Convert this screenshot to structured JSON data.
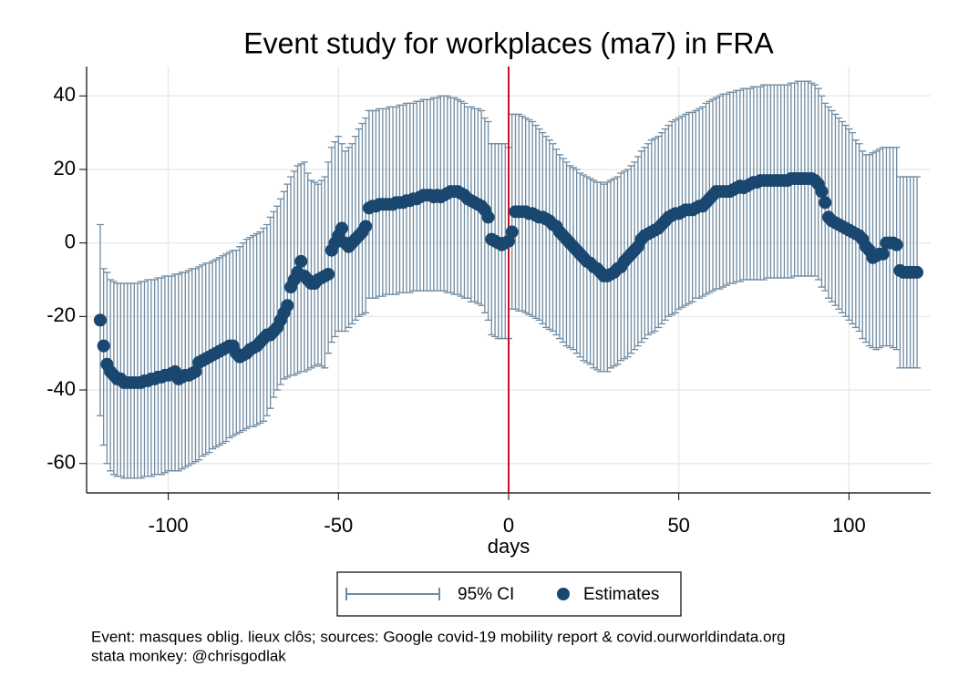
{
  "chart_data": {
    "type": "errorbar-scatter",
    "title": "Event study for workplaces (ma7) in FRA",
    "x_label": "days",
    "notes": [
      "Event: masques oblig. lieux clôs; sources: Google covid-19 mobility report & covid.ourworldindata.org",
      "stata monkey: @chrisgodlak"
    ],
    "xlim": [
      -124,
      124
    ],
    "ylim": [
      -68,
      48
    ],
    "xticks": [
      -100,
      -50,
      0,
      50,
      100
    ],
    "yticks": [
      -60,
      -40,
      -20,
      0,
      20,
      40
    ],
    "grid": true,
    "xline": {
      "value": 0,
      "color": "#c8102e"
    },
    "x": [
      -120,
      -119,
      -118,
      -117,
      -116,
      -115,
      -114,
      -113,
      -112,
      -111,
      -110,
      -109,
      -108,
      -107,
      -106,
      -105,
      -104,
      -103,
      -102,
      -101,
      -100,
      -99,
      -98,
      -97,
      -96,
      -95,
      -94,
      -93,
      -92,
      -91,
      -90,
      -89,
      -88,
      -87,
      -86,
      -85,
      -84,
      -83,
      -82,
      -81,
      -80,
      -79,
      -78,
      -77,
      -76,
      -75,
      -74,
      -73,
      -72,
      -71,
      -70,
      -69,
      -68,
      -67,
      -66,
      -65,
      -64,
      -63,
      -62,
      -61,
      -60,
      -59,
      -58,
      -57,
      -56,
      -55,
      -54,
      -53,
      -52,
      -51,
      -50,
      -49,
      -48,
      -47,
      -46,
      -45,
      -44,
      -43,
      -42,
      -41,
      -40,
      -39,
      -38,
      -37,
      -36,
      -35,
      -34,
      -33,
      -32,
      -31,
      -30,
      -29,
      -28,
      -27,
      -26,
      -25,
      -24,
      -23,
      -22,
      -21,
      -20,
      -19,
      -18,
      -17,
      -16,
      -15,
      -14,
      -13,
      -12,
      -11,
      -10,
      -9,
      -8,
      -7,
      -6,
      -5,
      -4,
      -3,
      -2,
      -1,
      0,
      1,
      2,
      3,
      4,
      5,
      6,
      7,
      8,
      9,
      10,
      11,
      12,
      13,
      14,
      15,
      16,
      17,
      18,
      19,
      20,
      21,
      22,
      23,
      24,
      25,
      26,
      27,
      28,
      29,
      30,
      31,
      32,
      33,
      34,
      35,
      36,
      37,
      38,
      39,
      40,
      41,
      42,
      43,
      44,
      45,
      46,
      47,
      48,
      49,
      50,
      51,
      52,
      53,
      54,
      55,
      56,
      57,
      58,
      59,
      60,
      61,
      62,
      63,
      64,
      65,
      66,
      67,
      68,
      69,
      70,
      71,
      72,
      73,
      74,
      75,
      76,
      77,
      78,
      79,
      80,
      81,
      82,
      83,
      84,
      85,
      86,
      87,
      88,
      89,
      90,
      91,
      92,
      93,
      94,
      95,
      96,
      97,
      98,
      99,
      100,
      101,
      102,
      103,
      104,
      105,
      106,
      107,
      108,
      109,
      110,
      111,
      112,
      113,
      114,
      115,
      116,
      117,
      118,
      119,
      120
    ],
    "series": [
      {
        "name": "95% CI",
        "color": "#6f8ba2",
        "upper": [
          5,
          -7,
          -8,
          -10,
          -10.5,
          -11,
          -11,
          -11,
          -11,
          -11,
          -11,
          -11,
          -10.5,
          -10.5,
          -10,
          -10,
          -10,
          -9.5,
          -9.5,
          -9,
          -9,
          -9,
          -8.5,
          -8.5,
          -8,
          -8,
          -7.5,
          -7,
          -7,
          -6.5,
          -6,
          -5.5,
          -5.5,
          -5,
          -4.5,
          -4,
          -3.5,
          -3,
          -2.5,
          -2,
          -2,
          -1,
          0,
          1,
          1.5,
          2,
          2.5,
          3,
          4,
          5,
          7,
          8.5,
          10,
          12,
          14,
          16,
          18,
          19.5,
          21,
          21.5,
          22,
          19,
          17,
          16.5,
          16,
          17,
          18,
          22,
          26,
          27.5,
          29,
          27,
          25,
          26,
          27,
          29,
          31,
          32.5,
          34,
          36,
          36,
          36,
          36.5,
          36.5,
          36.5,
          37,
          37,
          37,
          37.5,
          37.5,
          38,
          38,
          38,
          38.5,
          38.5,
          39,
          39,
          39,
          39.5,
          39.5,
          40,
          40,
          40,
          39.5,
          39.5,
          39,
          38.5,
          38,
          37,
          37,
          36.5,
          36.5,
          36,
          34,
          33,
          27,
          27,
          27,
          27,
          27,
          26,
          35,
          35,
          35,
          34.5,
          34,
          33.5,
          33,
          32,
          31,
          30,
          29,
          28,
          27,
          25.5,
          24,
          23,
          22,
          21,
          20.5,
          20,
          19,
          18.5,
          18,
          17.5,
          17,
          16.5,
          16.5,
          16,
          16.5,
          17,
          17.5,
          18,
          19,
          19.5,
          20,
          21,
          22,
          23.5,
          25,
          26,
          27,
          28,
          28.5,
          29,
          30,
          31,
          32,
          33,
          33.5,
          34,
          34.5,
          35,
          35.5,
          35.5,
          36,
          36.5,
          37,
          38,
          38.5,
          39,
          39.5,
          40,
          40.5,
          40.5,
          41,
          41,
          41.5,
          41.5,
          42,
          42,
          42,
          42.5,
          42.5,
          42.5,
          43,
          43,
          43,
          43,
          43,
          43,
          43,
          43,
          43.5,
          43.5,
          44,
          44,
          44,
          44,
          43.5,
          43,
          42,
          40,
          38,
          37,
          36,
          35,
          34,
          33,
          32,
          31,
          30,
          28,
          27,
          25,
          24,
          24,
          24.5,
          25,
          25.5,
          26,
          26,
          26,
          26,
          26,
          18,
          18,
          18,
          18,
          18,
          18
        ],
        "lower": [
          -47,
          -55,
          -60,
          -62,
          -63,
          -63.5,
          -63.5,
          -64,
          -64,
          -64,
          -64,
          -64,
          -64,
          -63.5,
          -63.5,
          -63.5,
          -63,
          -63,
          -63,
          -62.5,
          -62,
          -62,
          -62,
          -62,
          -61.5,
          -61,
          -60.5,
          -60,
          -59.5,
          -59,
          -58,
          -57.5,
          -57,
          -56,
          -55.5,
          -55,
          -54.5,
          -54,
          -53,
          -52.5,
          -52,
          -51.5,
          -51,
          -50.5,
          -50,
          -50,
          -49.5,
          -49,
          -48.5,
          -47,
          -45,
          -42,
          -40,
          -38.5,
          -37,
          -36.5,
          -36,
          -36,
          -35.5,
          -35,
          -35,
          -34.5,
          -34,
          -33.5,
          -33,
          -33.5,
          -34,
          -30,
          -27,
          -25.5,
          -24,
          -24,
          -24,
          -23,
          -22,
          -21,
          -20,
          -19.5,
          -19,
          -15,
          -15,
          -15,
          -14.5,
          -14.5,
          -14,
          -14,
          -14,
          -14,
          -13.5,
          -13.5,
          -13.5,
          -13.5,
          -13,
          -13,
          -13,
          -13,
          -13,
          -13,
          -13,
          -13,
          -13,
          -13,
          -13.5,
          -13.5,
          -14,
          -14,
          -14.5,
          -15,
          -15,
          -16,
          -16,
          -16.5,
          -17,
          -19,
          -21,
          -25,
          -25.5,
          -26,
          -26,
          -26,
          -26,
          -18,
          -18,
          -18.5,
          -18.5,
          -19,
          -19.5,
          -20,
          -20.5,
          -21,
          -22,
          -23,
          -23.5,
          -24,
          -25,
          -26,
          -27,
          -28,
          -28.5,
          -29,
          -30,
          -31,
          -32,
          -32.5,
          -33,
          -34,
          -34.5,
          -35,
          -35,
          -35,
          -34,
          -33.5,
          -33,
          -32,
          -31.5,
          -31,
          -30,
          -29,
          -28,
          -27,
          -26,
          -25,
          -24.5,
          -24,
          -23,
          -22,
          -21,
          -20,
          -19.5,
          -19,
          -18,
          -17.5,
          -17,
          -16.5,
          -16,
          -15,
          -15,
          -14.5,
          -14,
          -13.5,
          -13,
          -12.5,
          -12.5,
          -12,
          -11.5,
          -11,
          -11,
          -10.5,
          -10.5,
          -10,
          -10,
          -10,
          -10,
          -10,
          -10,
          -10,
          -9.5,
          -9.5,
          -9.5,
          -9.5,
          -9.5,
          -9.5,
          -9.5,
          -9.5,
          -9,
          -9,
          -9,
          -9,
          -9,
          -9,
          -9,
          -10,
          -12,
          -13,
          -15,
          -16,
          -17,
          -18,
          -19,
          -20,
          -21,
          -22,
          -23,
          -24,
          -26,
          -27,
          -28,
          -28.5,
          -29,
          -28.5,
          -28,
          -28,
          -28,
          -28.5,
          -29,
          -34,
          -34,
          -34,
          -34,
          -34,
          -34
        ]
      },
      {
        "name": "Estimates",
        "color": "#1a476f",
        "values": [
          -21,
          -28,
          -33,
          -35,
          -36,
          -37,
          -37,
          -38,
          -38,
          -38,
          -38,
          -38,
          -38,
          -37.5,
          -37.5,
          -37,
          -37,
          -36.5,
          -36.5,
          -36,
          -36,
          -35.5,
          -35,
          -37,
          -36.5,
          -36,
          -36,
          -35.5,
          -35,
          -32.5,
          -32,
          -31.5,
          -31,
          -30.5,
          -30,
          -29.5,
          -29,
          -28.5,
          -28,
          -28,
          -30,
          -31,
          -30.5,
          -30,
          -29,
          -28.5,
          -28,
          -27,
          -26,
          -25,
          -25,
          -24,
          -23,
          -21,
          -19,
          -17,
          -12,
          -10,
          -8,
          -5,
          -9,
          -10,
          -11,
          -11,
          -10,
          -9.5,
          -9,
          -8.5,
          -2,
          0,
          2,
          4,
          0,
          -1,
          0,
          1,
          2,
          3,
          4.5,
          9.5,
          10,
          10,
          10.5,
          10.5,
          10.5,
          10.5,
          10.5,
          11,
          11,
          11,
          11.5,
          11.5,
          12,
          12,
          12.5,
          13,
          13,
          13,
          12.5,
          13,
          12.5,
          13,
          13.5,
          14,
          14,
          14,
          13.5,
          13,
          12,
          11.5,
          11,
          10.5,
          10,
          9,
          7,
          1,
          0.5,
          0,
          -0.5,
          0,
          0.5,
          3,
          8.5,
          8.5,
          8.5,
          8.5,
          8,
          8,
          7.5,
          7,
          7,
          6.5,
          6,
          5,
          4.5,
          3,
          2,
          1,
          0,
          -1,
          -2,
          -3,
          -4,
          -5,
          -5.5,
          -6.5,
          -7,
          -8,
          -9,
          -9,
          -8.5,
          -8,
          -7,
          -6.5,
          -5,
          -4,
          -3,
          -2,
          -1,
          1,
          2,
          2.5,
          3,
          3.5,
          4,
          5,
          6,
          7,
          7.5,
          8,
          8,
          8.5,
          9,
          9,
          9,
          9.5,
          10,
          10,
          11,
          12,
          13,
          14,
          14,
          14,
          14,
          14,
          14.5,
          15,
          15.5,
          15,
          15.5,
          16,
          16.5,
          16.5,
          17,
          17,
          17,
          17,
          17,
          17,
          17,
          17,
          17,
          17.5,
          17.5,
          17.5,
          17.5,
          17.5,
          17.5,
          17.5,
          17,
          16,
          14,
          11,
          7,
          6,
          5.5,
          5,
          4.5,
          4,
          3.5,
          3,
          2.5,
          2,
          1,
          -1,
          -2,
          -4,
          -3.5,
          -3,
          -3,
          0,
          0,
          0,
          -0.5,
          -7.5,
          -8,
          -8,
          -8,
          -8,
          -8
        ]
      }
    ]
  }
}
